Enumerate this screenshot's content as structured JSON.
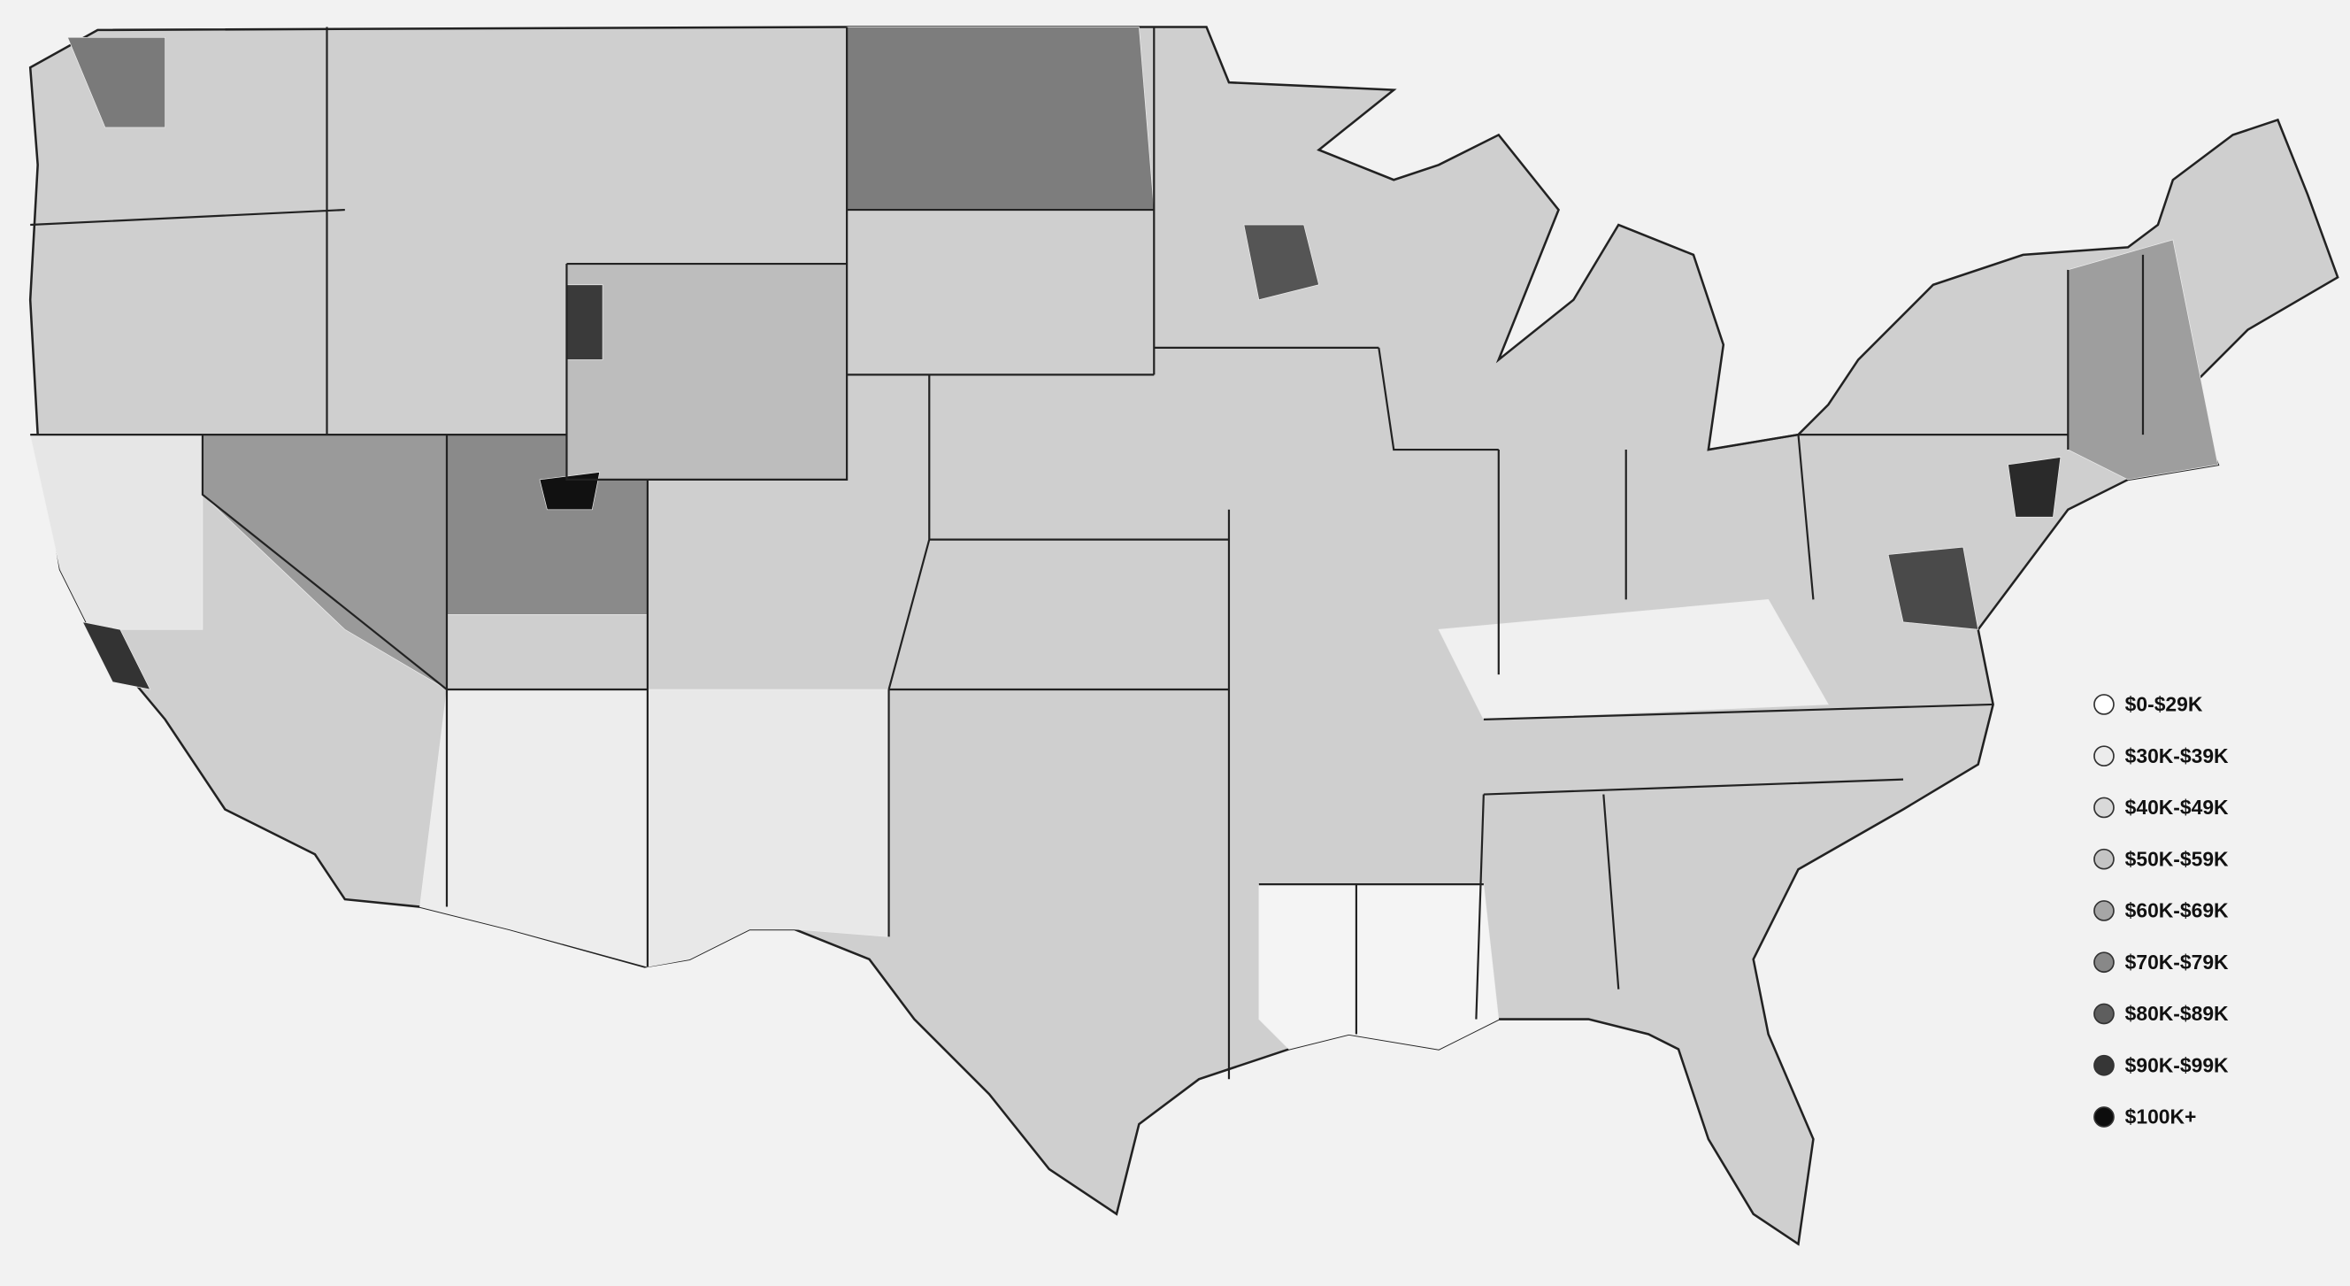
{
  "legend": {
    "items": [
      {
        "label": "$0-$29K",
        "color": "#ffffff"
      },
      {
        "label": "$30K-$39K",
        "color": "#ececec"
      },
      {
        "label": "$40K-$49K",
        "color": "#d9d9d9"
      },
      {
        "label": "$50K-$59K",
        "color": "#c4c4c4"
      },
      {
        "label": "$60K-$69K",
        "color": "#a6a6a6"
      },
      {
        "label": "$70K-$79K",
        "color": "#888888"
      },
      {
        "label": "$80K-$89K",
        "color": "#5e5e5e"
      },
      {
        "label": "$90K-$99K",
        "color": "#363636"
      },
      {
        "label": "$100K+",
        "color": "#0d0d0d"
      }
    ]
  }
}
